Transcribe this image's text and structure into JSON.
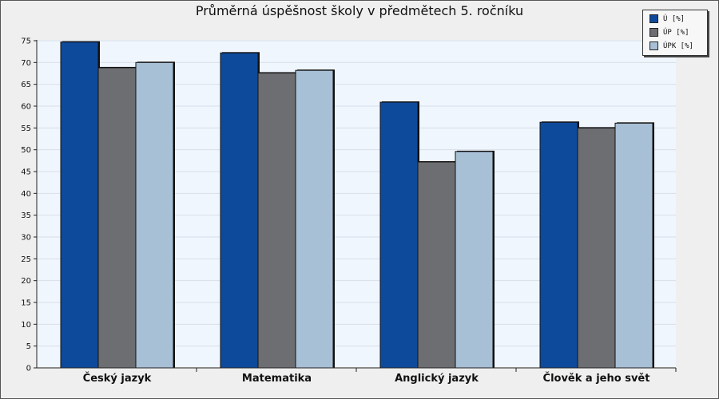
{
  "chart_data": {
    "type": "bar",
    "title": "Průměrná úspěšnost školy v předmětech 5. ročníku",
    "categories": [
      "Český jazyk",
      "Matematika",
      "Anglický jazyk",
      "Člověk a jeho svět"
    ],
    "series": [
      {
        "name": "Ú [%]",
        "values": [
          74.7,
          72.2,
          60.9,
          56.3
        ],
        "color": "#0e4a9c"
      },
      {
        "name": "ÚP [%]",
        "values": [
          68.8,
          67.6,
          47.2,
          55.0
        ],
        "color": "#6d6e72"
      },
      {
        "name": "ÚPK [%]",
        "values": [
          70.0,
          68.2,
          49.6,
          56.1
        ],
        "color": "#a8c0d6"
      }
    ],
    "ylim": [
      0,
      75
    ],
    "yticks": [
      0,
      5,
      10,
      15,
      20,
      25,
      30,
      35,
      40,
      45,
      50,
      55,
      60,
      65,
      70,
      75
    ],
    "grid": true,
    "legend_position": "top-right",
    "plot_background": "#f0f6fd",
    "grid_color": "#d9dfe9"
  }
}
